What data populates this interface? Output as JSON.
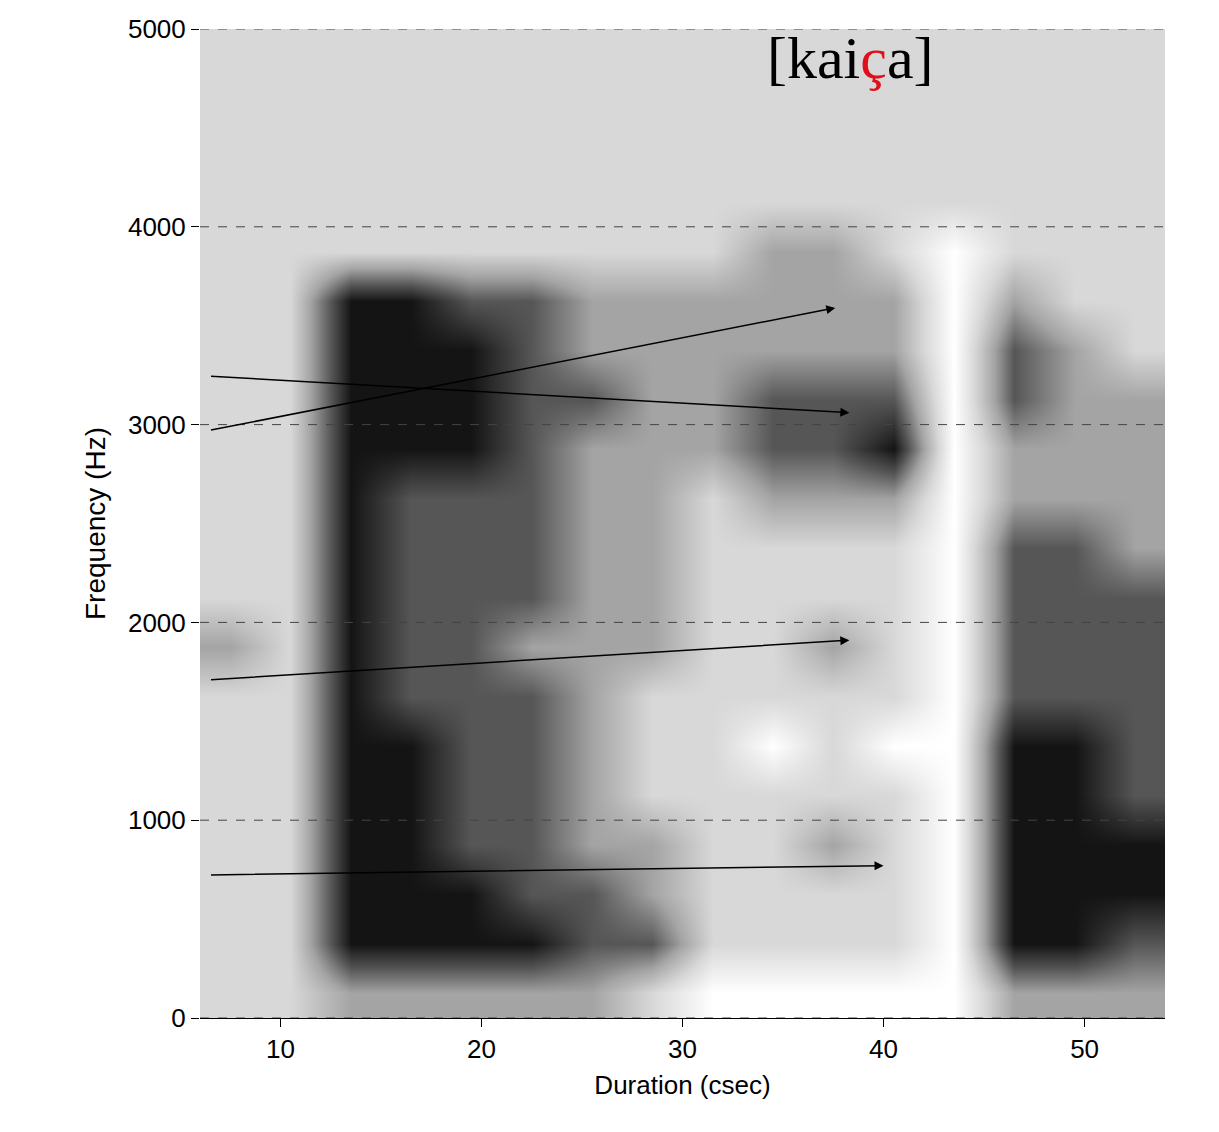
{
  "chart_data": {
    "type": "heatmap",
    "title": "[kaiça]",
    "highlight": {
      "text": "ç",
      "color": "#e0101a"
    },
    "x_label": "Duration (csec)",
    "y_label": "Frequency (Hz)",
    "x": [
      7.5,
      10.5,
      13.5,
      16.5,
      19.5,
      22.5,
      25.5,
      28.5,
      31.5,
      34.5,
      37.5,
      40.5,
      43.5,
      46.5,
      49.5,
      52.5
    ],
    "y": [
      125,
      375,
      625,
      875,
      1125,
      1375,
      1625,
      1875,
      2125,
      2375,
      2625,
      2875,
      3125,
      3375,
      3625,
      3875,
      4125,
      4375,
      4625,
      4875
    ],
    "z": [
      [
        1,
        1,
        2,
        2,
        2,
        2,
        2,
        1,
        0,
        0,
        0,
        0,
        0,
        2,
        2,
        2
      ],
      [
        1,
        1,
        4,
        4,
        4,
        4,
        3,
        3,
        1,
        1,
        1,
        1,
        0,
        4,
        4,
        3
      ],
      [
        1,
        1,
        4,
        4,
        4,
        3,
        3,
        2,
        1,
        1,
        1,
        1,
        0,
        4,
        4,
        4
      ],
      [
        1,
        1,
        4,
        4,
        3,
        3,
        2,
        2,
        1,
        1,
        2,
        1,
        0,
        4,
        4,
        4
      ],
      [
        1,
        1,
        4,
        4,
        3,
        3,
        2,
        1,
        1,
        1,
        1,
        1,
        0,
        4,
        4,
        3
      ],
      [
        1,
        1,
        4,
        4,
        3,
        3,
        2,
        1,
        1,
        0,
        1,
        0,
        0,
        4,
        4,
        3
      ],
      [
        1,
        1,
        4,
        3,
        3,
        3,
        2,
        1,
        1,
        1,
        1,
        1,
        0,
        3,
        3,
        3
      ],
      [
        2,
        1,
        4,
        3,
        3,
        2,
        2,
        2,
        1,
        1,
        2,
        1,
        0,
        3,
        3,
        3
      ],
      [
        1,
        1,
        4,
        3,
        3,
        3,
        2,
        2,
        1,
        1,
        1,
        1,
        0,
        3,
        3,
        3
      ],
      [
        1,
        1,
        4,
        3,
        3,
        3,
        2,
        2,
        1,
        1,
        1,
        1,
        0,
        3,
        3,
        2
      ],
      [
        1,
        1,
        4,
        3,
        3,
        3,
        2,
        2,
        1,
        2,
        2,
        2,
        0,
        2,
        2,
        2
      ],
      [
        1,
        1,
        4,
        4,
        4,
        3,
        2,
        2,
        2,
        3,
        3,
        4,
        0,
        2,
        2,
        2
      ],
      [
        1,
        1,
        4,
        4,
        4,
        3,
        3,
        2,
        2,
        3,
        3,
        3,
        0,
        3,
        2,
        2
      ],
      [
        1,
        1,
        4,
        4,
        4,
        3,
        2,
        2,
        2,
        2,
        2,
        2,
        0,
        3,
        2,
        1
      ],
      [
        1,
        1,
        4,
        4,
        3,
        3,
        2,
        2,
        2,
        2,
        2,
        2,
        0,
        2,
        1,
        1
      ],
      [
        1,
        1,
        1,
        1,
        1,
        1,
        1,
        1,
        1,
        2,
        2,
        1,
        0,
        1,
        1,
        1
      ],
      [
        1,
        1,
        1,
        1,
        1,
        1,
        1,
        1,
        1,
        1,
        1,
        1,
        1,
        1,
        1,
        1
      ],
      [
        1,
        1,
        1,
        1,
        1,
        1,
        1,
        1,
        1,
        1,
        1,
        1,
        1,
        1,
        1,
        1
      ],
      [
        1,
        1,
        1,
        1,
        1,
        1,
        1,
        1,
        1,
        1,
        1,
        1,
        1,
        1,
        1,
        1
      ],
      [
        1,
        1,
        1,
        1,
        1,
        1,
        1,
        1,
        1,
        1,
        1,
        1,
        1,
        1,
        1,
        1
      ]
    ],
    "zlim": [
      0,
      4
    ],
    "xlim": [
      6,
      54
    ],
    "xticks": [
      10,
      20,
      30,
      40,
      50
    ],
    "ylim": [
      0,
      5000
    ],
    "yticks": [
      0,
      1000,
      2000,
      3000,
      4000,
      5000
    ],
    "grid": "y",
    "arrows": [
      {
        "x": 38.3,
        "y": 3060
      },
      {
        "x": 37.6,
        "y": 3590
      },
      {
        "x": 38.3,
        "y": 1910
      },
      {
        "x": 40.0,
        "y": 770
      }
    ]
  }
}
